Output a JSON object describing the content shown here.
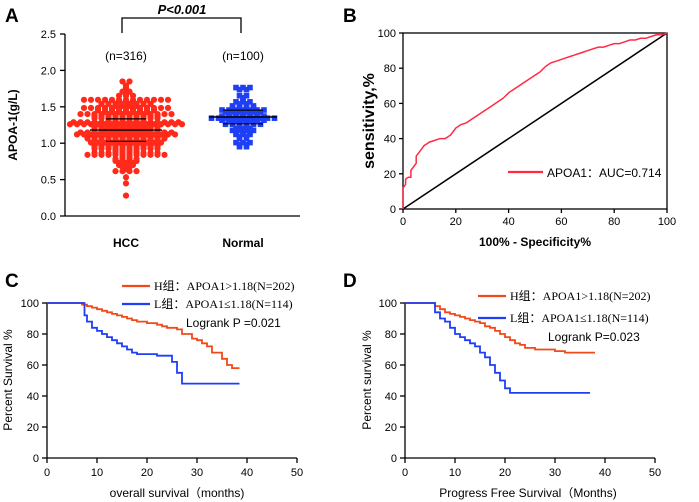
{
  "colors": {
    "red": "#ff2a1a",
    "blue": "#1f3ff5",
    "orange_red": "#f04a1a",
    "roc": "#ff2a44",
    "axis": "#000000"
  },
  "chart_data": [
    {
      "panel": "A",
      "type": "scatter",
      "title": "P<0.001",
      "ylabel": "APOA-1(g/L)",
      "ylim": [
        0,
        2.5
      ],
      "yticks": [
        "0.0",
        "0.5",
        "1.0",
        "1.5",
        "2.0",
        "2.5"
      ],
      "categories": [
        "HCC",
        "Normal"
      ],
      "groups": [
        {
          "name": "HCC",
          "n_label": "(n=316)",
          "n": 316,
          "mean": 1.18,
          "sd": 0.28,
          "min": 0.28,
          "max": 1.86,
          "color": "#ff2a1a",
          "marker": "circle"
        },
        {
          "name": "Normal",
          "n_label": "(n=100)",
          "n": 100,
          "mean": 1.36,
          "sd": 0.17,
          "min": 0.95,
          "max": 1.75,
          "color": "#1f3ff5",
          "marker": "square"
        }
      ]
    },
    {
      "panel": "B",
      "type": "line",
      "xlabel": "100% - Specificity%",
      "ylabel": "sensitivity,%",
      "xlim": [
        0,
        100
      ],
      "ylim": [
        0,
        100
      ],
      "xticks": [
        "0",
        "20",
        "40",
        "60",
        "80",
        "100"
      ],
      "yticks": [
        "0",
        "20",
        "40",
        "60",
        "80",
        "100"
      ],
      "legend": "APOA1：AUC=0.714",
      "auc": 0.714,
      "series": [
        {
          "name": "ROC",
          "x": [
            0,
            0,
            1,
            1,
            2,
            3,
            3,
            4,
            5,
            5,
            6,
            7,
            8,
            9,
            10,
            12,
            14,
            16,
            18,
            19,
            20,
            22,
            24,
            26,
            28,
            30,
            32,
            34,
            36,
            38,
            40,
            42,
            44,
            46,
            48,
            50,
            52,
            54,
            56,
            58,
            60,
            62,
            64,
            66,
            68,
            70,
            72,
            74,
            76,
            78,
            80,
            82,
            84,
            86,
            88,
            90,
            92,
            94,
            96,
            98,
            100
          ],
          "y": [
            0,
            12,
            14,
            17,
            18,
            18,
            22,
            24,
            26,
            30,
            32,
            34,
            36,
            37,
            38,
            39,
            40,
            40,
            42,
            44,
            46,
            48,
            49,
            51,
            53,
            55,
            57,
            59,
            61,
            63,
            66,
            68,
            70,
            72,
            74,
            76,
            78,
            81,
            83,
            84,
            85,
            86,
            87,
            88,
            89,
            90,
            91,
            92,
            92,
            93,
            94,
            94,
            95,
            96,
            96,
            97,
            97,
            98,
            99,
            99,
            100
          ]
        },
        {
          "name": "reference",
          "x": [
            0,
            100
          ],
          "y": [
            0,
            100
          ]
        }
      ]
    },
    {
      "panel": "C",
      "type": "line",
      "xlabel": "overall survival（months)",
      "ylabel": "Percent Survival %",
      "xlim": [
        0,
        50
      ],
      "ylim": [
        0,
        100
      ],
      "xticks": [
        "0",
        "10",
        "20",
        "30",
        "40",
        "50"
      ],
      "yticks": [
        "0",
        "20",
        "40",
        "60",
        "80",
        "100"
      ],
      "annotation": "Logrank P =0.021",
      "series": [
        {
          "name": "H组：APOA1>1.18(N=202)",
          "color": "#f04a1a",
          "x": [
            0,
            7,
            8,
            9,
            10,
            11,
            12,
            13,
            14,
            15,
            16,
            17,
            18,
            19,
            20,
            21,
            22,
            23,
            24,
            25,
            26,
            27,
            28,
            29,
            30,
            31,
            32,
            33,
            34,
            35,
            36,
            37,
            38,
            38.5
          ],
          "y": [
            100,
            99,
            98,
            97,
            96,
            95,
            94,
            93,
            92,
            91,
            90,
            89,
            88,
            88,
            87,
            87,
            86,
            85,
            84,
            84,
            83,
            80,
            80,
            77,
            76,
            74,
            72,
            68,
            68,
            64,
            60,
            58,
            58,
            58
          ]
        },
        {
          "name": "L组：APOA1≤1.18(N=114)",
          "color": "#1f3ff5",
          "x": [
            0,
            7,
            7.5,
            8,
            9,
            10,
            11,
            12,
            13,
            14,
            15,
            16,
            17,
            18,
            20,
            22,
            24,
            25,
            26,
            27,
            28,
            30,
            32,
            34,
            36,
            38.5
          ],
          "y": [
            100,
            100,
            92,
            88,
            84,
            82,
            80,
            78,
            76,
            74,
            72,
            70,
            68,
            67,
            67,
            66,
            66,
            62,
            55,
            48,
            48,
            48,
            48,
            48,
            48,
            48
          ]
        }
      ]
    },
    {
      "panel": "D",
      "type": "line",
      "xlabel": "Progress Free Survival（Months)",
      "ylabel": "Percent survival %",
      "xlim": [
        0,
        50
      ],
      "ylim": [
        0,
        100
      ],
      "xticks": [
        "0",
        "10",
        "20",
        "30",
        "40",
        "50"
      ],
      "yticks": [
        "0",
        "20",
        "40",
        "60",
        "80",
        "100"
      ],
      "annotation": "Logrank P=0.023",
      "series": [
        {
          "name": "H组：APOA1>1.18(N=202)",
          "color": "#f04a1a",
          "x": [
            0,
            5,
            6,
            7,
            8,
            9,
            10,
            11,
            12,
            13,
            14,
            15,
            16,
            17,
            18,
            19,
            20,
            21,
            22,
            23,
            24,
            26,
            28,
            30,
            32,
            34,
            36,
            38
          ],
          "y": [
            100,
            100,
            98,
            96,
            94,
            93,
            92,
            91,
            90,
            89,
            88,
            87,
            85,
            84,
            82,
            80,
            78,
            76,
            74,
            73,
            71,
            70,
            70,
            69,
            68,
            68,
            68,
            68
          ]
        },
        {
          "name": "L组：APOA1≤1.18(N=114)",
          "color": "#1f3ff5",
          "x": [
            0,
            5,
            6,
            7,
            8,
            9,
            10,
            11,
            12,
            13,
            14,
            15,
            16,
            17,
            18,
            19,
            20,
            21,
            22,
            24,
            26,
            28,
            30,
            32,
            34,
            36,
            37
          ],
          "y": [
            100,
            100,
            94,
            90,
            88,
            84,
            80,
            78,
            76,
            74,
            72,
            68,
            65,
            60,
            55,
            50,
            45,
            42,
            42,
            42,
            42,
            42,
            42,
            42,
            42,
            42,
            42
          ]
        }
      ]
    }
  ]
}
